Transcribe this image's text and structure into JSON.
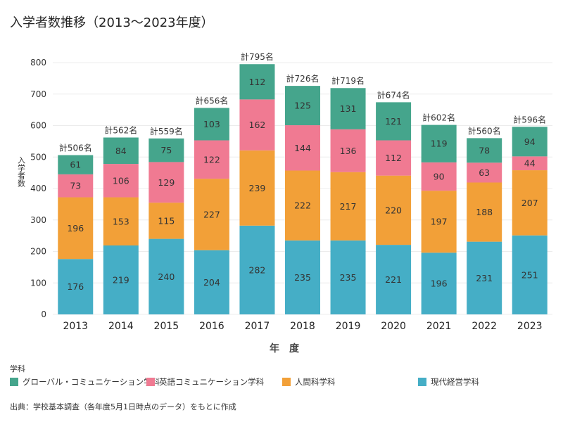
{
  "chart_data": {
    "type": "bar",
    "stacked": true,
    "title": "入学者数推移（2013～2023年度）",
    "xlabel": "年　度",
    "ylabel": "入学者数",
    "ylim": [
      0,
      800
    ],
    "yticks": [
      0,
      100,
      200,
      300,
      400,
      500,
      600,
      700,
      800
    ],
    "grid": true,
    "categories": [
      "2013",
      "2014",
      "2015",
      "2016",
      "2017",
      "2018",
      "2019",
      "2020",
      "2021",
      "2022",
      "2023"
    ],
    "series": [
      {
        "name": "現代経営学科",
        "color": "#45aec6",
        "values": [
          176,
          219,
          240,
          204,
          282,
          235,
          235,
          221,
          196,
          231,
          251
        ]
      },
      {
        "name": "人間科学科",
        "color": "#f2a038",
        "values": [
          196,
          153,
          115,
          227,
          239,
          222,
          217,
          220,
          197,
          188,
          207
        ]
      },
      {
        "name": "英語コミュニケーション学科",
        "color": "#f07a92",
        "values": [
          73,
          106,
          129,
          122,
          162,
          144,
          136,
          112,
          90,
          63,
          44
        ]
      },
      {
        "name": "グローバル・コミュニケーション学科",
        "color": "#45a58c",
        "values": [
          61,
          84,
          75,
          103,
          112,
          125,
          131,
          121,
          119,
          78,
          94
        ]
      }
    ],
    "totals": [
      "計506名",
      "計562名",
      "計559名",
      "計656名",
      "計795名",
      "計726名",
      "計719名",
      "計674名",
      "計602名",
      "計560名",
      "計596名"
    ],
    "legend_title": "学科",
    "legend_position": "bottom",
    "legend_order": [
      {
        "name": "グローバル・コミュニケーション学科",
        "color": "#45a58c"
      },
      {
        "name": "英語コミュニケーション学科",
        "color": "#f07a92"
      },
      {
        "name": "人間科学科",
        "color": "#f2a038"
      },
      {
        "name": "現代経営学科",
        "color": "#45aec6"
      }
    ]
  },
  "source_note": "出典：学校基本調査（各年度5月1日時点のデータ）をもとに作成"
}
